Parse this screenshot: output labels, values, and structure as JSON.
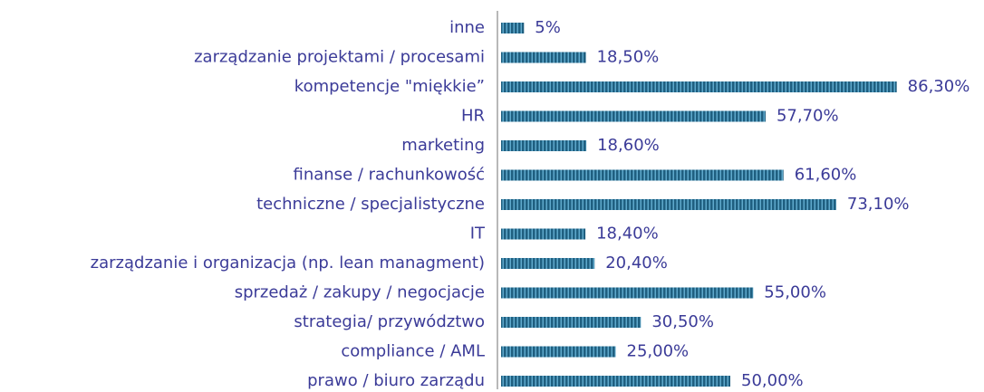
{
  "chart_data": {
    "type": "bar",
    "orientation": "horizontal",
    "categories": [
      "inne",
      "zarządzanie projektami / procesami",
      "kompetencje \"miękkie”",
      "HR",
      "marketing",
      "finanse / rachunkowość",
      "techniczne / specjalistyczne",
      "IT",
      "zarządzanie i organizacja (np. lean managment)",
      "sprzedaż / zakupy / negocjacje",
      "strategia/ przywództwo",
      "compliance / AML",
      "prawo / biuro zarządu"
    ],
    "values": [
      5,
      18.5,
      86.3,
      57.7,
      18.6,
      61.6,
      73.1,
      18.4,
      20.4,
      55,
      30.5,
      25,
      50
    ],
    "value_labels": [
      "5%",
      "18,50%",
      "86,30%",
      "57,70%",
      "18,60%",
      "61,60%",
      "73,10%",
      "18,40%",
      "20,40%",
      "55,00%",
      "30,50%",
      "25,00%",
      "50,00%"
    ],
    "color": "#1f5f80"
  }
}
